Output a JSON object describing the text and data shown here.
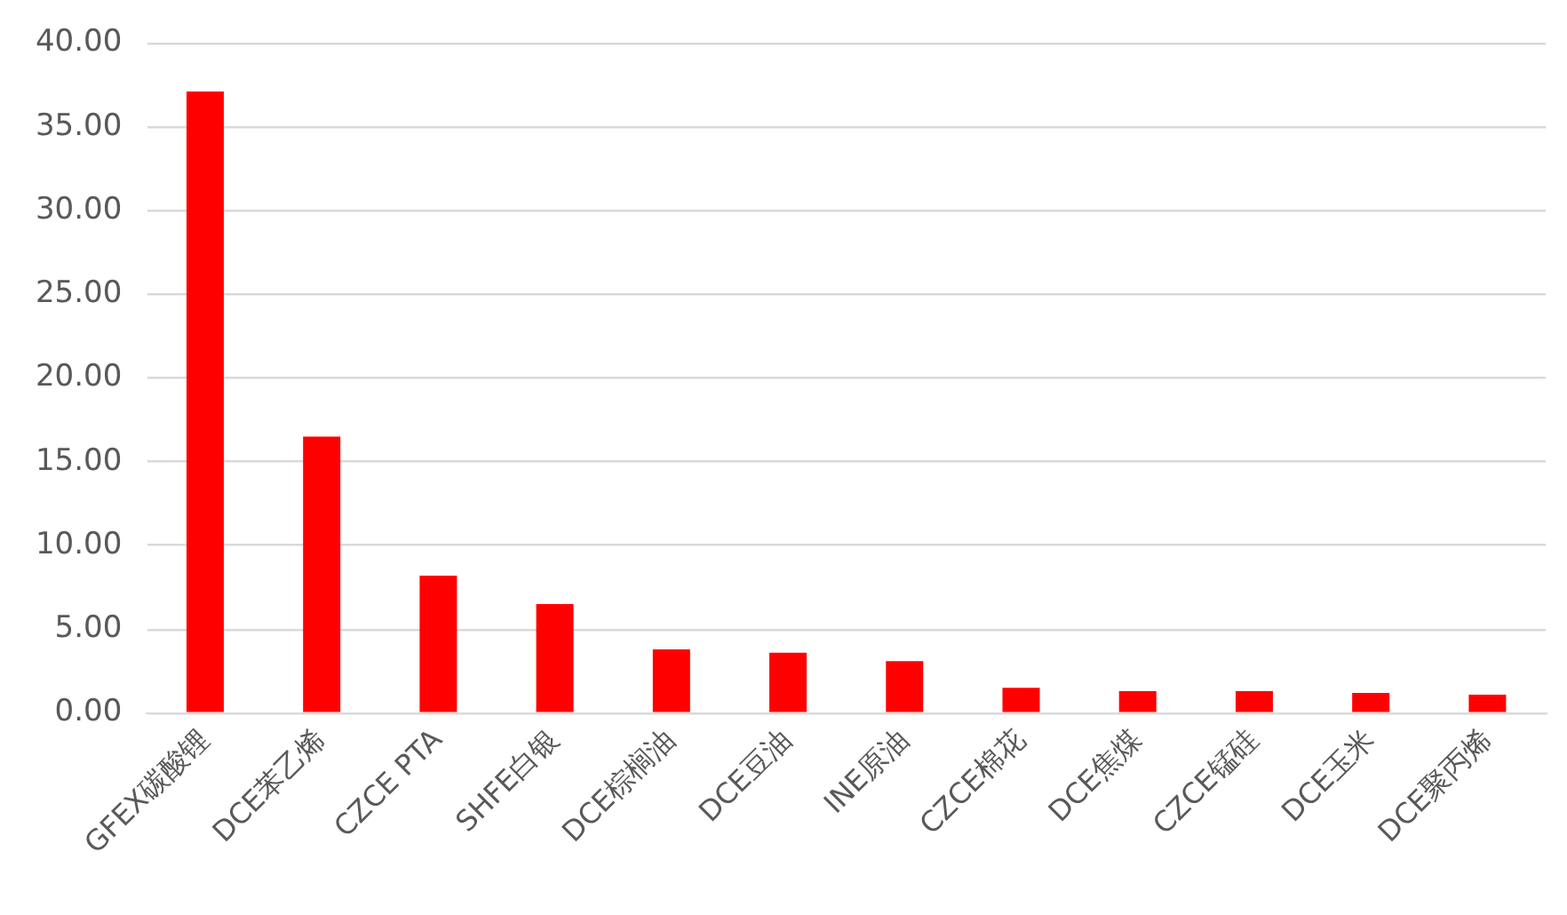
{
  "chart_data": {
    "type": "bar",
    "categories": [
      "GFEX碳酸锂",
      "DCE苯乙烯",
      "CZCE PTA",
      "SHFE白银",
      "DCE棕榈油",
      "DCE豆油",
      "INE原油",
      "CZCE棉花",
      "DCE焦煤",
      "CZCE锰硅",
      "DCE玉米",
      "DCE聚丙烯"
    ],
    "values": [
      37.1,
      16.5,
      8.2,
      6.5,
      3.8,
      3.6,
      3.1,
      1.5,
      1.3,
      1.3,
      1.2,
      1.1
    ],
    "color": "#ff0000",
    "ylim": [
      0,
      40
    ],
    "yticks": [
      {
        "value": 0,
        "label": "0.00"
      },
      {
        "value": 5,
        "label": "5.00"
      },
      {
        "value": 10,
        "label": "10.00"
      },
      {
        "value": 15,
        "label": "15.00"
      },
      {
        "value": 20,
        "label": "20.00"
      },
      {
        "value": 25,
        "label": "25.00"
      },
      {
        "value": 30,
        "label": "30.00"
      },
      {
        "value": 35,
        "label": "35.00"
      },
      {
        "value": 40,
        "label": "40.00"
      }
    ],
    "grid": "y"
  }
}
